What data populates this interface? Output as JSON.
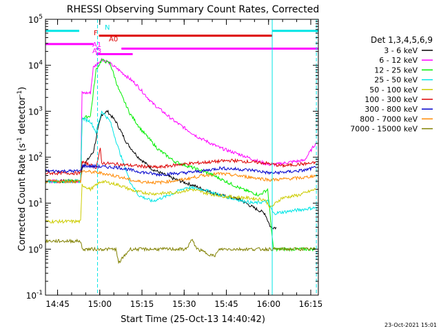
{
  "chart_data": {
    "type": "line",
    "title": "RHESSI Observing Summary Count Rates, Corrected",
    "xlabel": "Start Time (25-Oct-13 14:40:42)",
    "ylabel": "Corrected Count Rate (s",
    "ylabel_sup1": "-1",
    "ylabel_mid": " detector",
    "ylabel_sup2": "-1",
    "ylabel_end": ")",
    "footer": "23-Oct-2021 15:01",
    "x_unit": "minutes since 14:40:42",
    "xlim": [
      0,
      97
    ],
    "ylog": true,
    "ylim_exp": [
      -1,
      5
    ],
    "x_ticks": [
      {
        "label": "14:45",
        "min": 4.3
      },
      {
        "label": "15:00",
        "min": 19.3
      },
      {
        "label": "15:15",
        "min": 34.3
      },
      {
        "label": "15:30",
        "min": 49.3
      },
      {
        "label": "15:45",
        "min": 64.3
      },
      {
        "label": "16:00",
        "min": 79.3
      },
      {
        "label": "16:15",
        "min": 94.3
      }
    ],
    "y_ticks": [
      {
        "base": "10",
        "exp": "5",
        "v": 5
      },
      {
        "base": "10",
        "exp": "4",
        "v": 4
      },
      {
        "base": "10",
        "exp": "3",
        "v": 3
      },
      {
        "base": "10",
        "exp": "2",
        "v": 2
      },
      {
        "base": "10",
        "exp": "1",
        "v": 1
      },
      {
        "base": "10",
        "exp": "0",
        "v": 0
      },
      {
        "base": "10",
        "exp": "-1",
        "v": -1
      }
    ],
    "legend_title": "Det 1,3,4,5,6,9",
    "series": [
      {
        "name": "3 - 6 keV",
        "color": "#000000",
        "points": [
          [
            0,
            30
          ],
          [
            12.5,
            30
          ],
          [
            13,
            60
          ],
          [
            17,
            130
          ],
          [
            19,
            500
          ],
          [
            20,
            850
          ],
          [
            22,
            1000
          ],
          [
            25,
            600
          ],
          [
            29,
            200
          ],
          [
            33,
            100
          ],
          [
            38,
            55
          ],
          [
            45,
            35
          ],
          [
            52,
            25
          ],
          [
            58,
            18
          ],
          [
            64,
            14
          ],
          [
            69,
            12
          ],
          [
            74,
            8
          ],
          [
            78,
            6
          ],
          [
            80,
            3
          ],
          [
            82,
            3
          ]
        ]
      },
      {
        "name": "6 - 12 keV",
        "color": "#ff00ff",
        "points": [
          [
            0,
            30
          ],
          [
            12.5,
            30
          ],
          [
            13,
            2500
          ],
          [
            16,
            2500
          ],
          [
            17,
            9000
          ],
          [
            20,
            13500
          ],
          [
            22,
            12000
          ],
          [
            26,
            8000
          ],
          [
            32,
            4000
          ],
          [
            38,
            1500
          ],
          [
            46,
            600
          ],
          [
            54,
            280
          ],
          [
            62,
            160
          ],
          [
            70,
            110
          ],
          [
            76,
            80
          ],
          [
            79,
            70
          ],
          [
            82,
            70
          ],
          [
            88,
            80
          ],
          [
            92,
            85
          ],
          [
            96,
            200
          ]
        ]
      },
      {
        "name": "12 - 25 keV",
        "color": "#00ee00",
        "points": [
          [
            0,
            30
          ],
          [
            12.5,
            30
          ],
          [
            13,
            700
          ],
          [
            16,
            800
          ],
          [
            18,
            8000
          ],
          [
            20,
            13000
          ],
          [
            23,
            11000
          ],
          [
            26,
            3000
          ],
          [
            30,
            900
          ],
          [
            34,
            400
          ],
          [
            40,
            150
          ],
          [
            46,
            80
          ],
          [
            52,
            60
          ],
          [
            58,
            45
          ],
          [
            64,
            30
          ],
          [
            70,
            20
          ],
          [
            76,
            15
          ],
          [
            79,
            20
          ],
          [
            81,
            1
          ],
          [
            96,
            1
          ]
        ]
      },
      {
        "name": "25 - 50 keV",
        "color": "#00e5e5",
        "points": [
          [
            0,
            30
          ],
          [
            12.5,
            30
          ],
          [
            13,
            700
          ],
          [
            16,
            600
          ],
          [
            18,
            350
          ],
          [
            20,
            1000
          ],
          [
            23,
            600
          ],
          [
            26,
            150
          ],
          [
            30,
            30
          ],
          [
            33,
            15
          ],
          [
            38,
            11
          ],
          [
            44,
            15
          ],
          [
            50,
            22
          ],
          [
            56,
            20
          ],
          [
            62,
            15
          ],
          [
            68,
            12
          ],
          [
            74,
            10
          ],
          [
            79,
            11
          ],
          [
            81,
            6
          ],
          [
            96,
            8
          ]
        ]
      },
      {
        "name": "50 - 100 keV",
        "color": "#cccc00",
        "points": [
          [
            0,
            4
          ],
          [
            12.5,
            4
          ],
          [
            13,
            25
          ],
          [
            16,
            20
          ],
          [
            20,
            30
          ],
          [
            26,
            25
          ],
          [
            32,
            18
          ],
          [
            38,
            16
          ],
          [
            46,
            17
          ],
          [
            52,
            20
          ],
          [
            58,
            16
          ],
          [
            64,
            14
          ],
          [
            72,
            13
          ],
          [
            78,
            12
          ],
          [
            80,
            8
          ],
          [
            84,
            13
          ],
          [
            90,
            15
          ],
          [
            96,
            20
          ]
        ]
      },
      {
        "name": "100 - 300 keV",
        "color": "#dd0000",
        "points": [
          [
            0,
            45
          ],
          [
            12.5,
            45
          ],
          [
            13,
            80
          ],
          [
            18,
            60
          ],
          [
            19.5,
            150
          ],
          [
            20,
            75
          ],
          [
            26,
            70
          ],
          [
            32,
            65
          ],
          [
            40,
            60
          ],
          [
            48,
            70
          ],
          [
            54,
            75
          ],
          [
            60,
            80
          ],
          [
            66,
            85
          ],
          [
            72,
            80
          ],
          [
            78,
            75
          ],
          [
            84,
            65
          ],
          [
            90,
            70
          ],
          [
            96,
            75
          ]
        ]
      },
      {
        "name": "300 - 800 keV",
        "color": "#0000cc",
        "points": [
          [
            0,
            50
          ],
          [
            12.5,
            50
          ],
          [
            13,
            65
          ],
          [
            20,
            62
          ],
          [
            26,
            60
          ],
          [
            32,
            50
          ],
          [
            40,
            42
          ],
          [
            48,
            45
          ],
          [
            56,
            50
          ],
          [
            62,
            58
          ],
          [
            68,
            55
          ],
          [
            74,
            52
          ],
          [
            80,
            45
          ],
          [
            86,
            48
          ],
          [
            92,
            52
          ],
          [
            96,
            60
          ]
        ]
      },
      {
        "name": "800 - 7000 keV",
        "color": "#ff8800",
        "points": [
          [
            0,
            30
          ],
          [
            12.5,
            30
          ],
          [
            13,
            50
          ],
          [
            20,
            45
          ],
          [
            26,
            38
          ],
          [
            32,
            30
          ],
          [
            40,
            28
          ],
          [
            48,
            32
          ],
          [
            56,
            40
          ],
          [
            62,
            44
          ],
          [
            68,
            40
          ],
          [
            74,
            36
          ],
          [
            80,
            32
          ],
          [
            86,
            34
          ],
          [
            92,
            36
          ],
          [
            96,
            40
          ]
        ]
      },
      {
        "name": "7000 - 15000 keV",
        "color": "#808000",
        "points": [
          [
            0,
            1.5
          ],
          [
            12.5,
            1.5
          ],
          [
            13,
            1
          ],
          [
            25,
            1
          ],
          [
            26,
            0.5
          ],
          [
            30,
            1
          ],
          [
            50,
            1
          ],
          [
            52,
            1.6
          ],
          [
            54,
            1
          ],
          [
            60,
            0.7
          ],
          [
            62,
            1
          ],
          [
            96,
            1
          ]
        ]
      }
    ],
    "attenuator_labels": [
      {
        "text": "N",
        "color": "#00e5e5"
      },
      {
        "text": "F",
        "color": "#dd0000"
      },
      {
        "text": "A0",
        "color": "#dd0000"
      },
      {
        "text": "A1",
        "color": "#ff00ff"
      },
      {
        "text": "A3",
        "color": "#ff00ff"
      }
    ],
    "state_bars": [
      {
        "color": "#00e5e5",
        "row": "y_1e5",
        "segments": [
          [
            0,
            12
          ],
          [
            80.6,
            97
          ]
        ]
      },
      {
        "color": "#dd0000",
        "row": "y_45k",
        "segments": [
          [
            19,
            80.6
          ]
        ]
      },
      {
        "color": "#ff00ff",
        "row": "y_30k",
        "segments": [
          [
            0,
            17
          ]
        ]
      },
      {
        "color": "#ff00ff",
        "row": "y_24k",
        "segments": [
          [
            18,
            19
          ],
          [
            27,
            34
          ],
          [
            33,
            97
          ]
        ]
      },
      {
        "color": "#ff00ff",
        "row": "y_18k",
        "segments": [
          [
            18,
            31
          ]
        ]
      }
    ],
    "vlines": [
      {
        "min": 18.5,
        "color": "#00e5e5",
        "dashed": true
      },
      {
        "min": 80.6,
        "color": "#00e5e5",
        "dashed": false
      },
      {
        "min": 96.3,
        "color": "#00e5e5",
        "dashed": true
      }
    ]
  }
}
